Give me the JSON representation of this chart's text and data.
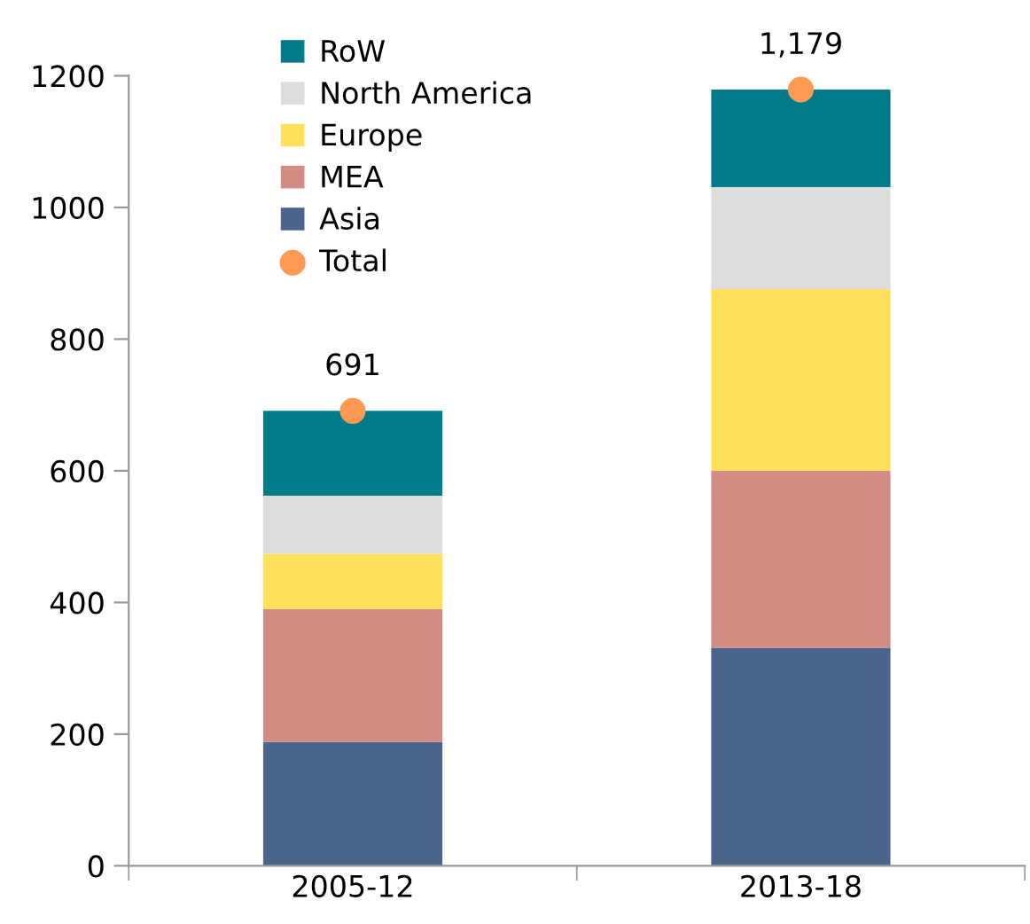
{
  "chart_data": {
    "type": "bar",
    "stacked": true,
    "categories": [
      "2005-12",
      "2013-18"
    ],
    "series": [
      {
        "name": "Asia",
        "color": "#4a648c",
        "values": [
          188,
          331
        ]
      },
      {
        "name": "MEA",
        "color": "#d38b84",
        "values": [
          202,
          269
        ]
      },
      {
        "name": "Europe",
        "color": "#fee05b",
        "values": [
          84,
          276
        ]
      },
      {
        "name": "North America",
        "color": "#dddddd",
        "values": [
          88,
          155
        ]
      },
      {
        "name": "RoW",
        "color": "#007b87",
        "values": [
          129,
          148
        ]
      },
      {
        "name": "Total",
        "type": "scatter",
        "color": "#ff9a52",
        "values": [
          691,
          1179
        ],
        "value_labels": [
          "691",
          "1,179"
        ]
      }
    ],
    "ylim": [
      0,
      1200
    ],
    "yticks": [
      0,
      200,
      400,
      600,
      800,
      1000,
      1200
    ],
    "grid": false,
    "legend": "top left",
    "marker": "circle"
  }
}
